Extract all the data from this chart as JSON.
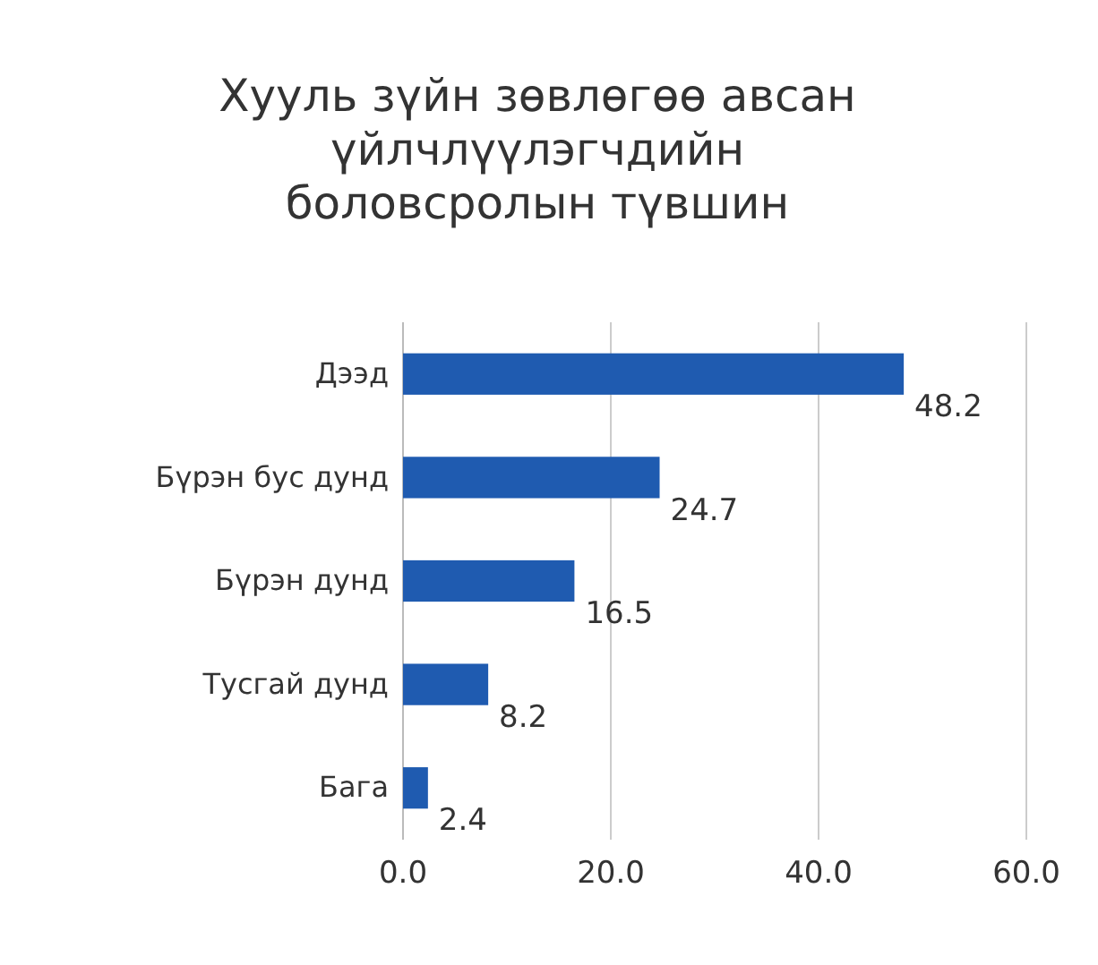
{
  "chart_data": {
    "type": "bar",
    "orientation": "horizontal",
    "title": "Хууль зүйн зөвлөгөө авсан үйлчлүүлэгчдийн боловсролын түвшин",
    "categories": [
      "Дээд",
      "Бүрэн бус дунд",
      "Бүрэн дунд",
      "Тусгай дунд",
      "Бага"
    ],
    "values": [
      48.2,
      24.7,
      16.5,
      8.2,
      2.4
    ],
    "color": "#1f5bb0",
    "xlim": [
      0,
      60
    ],
    "xticks": [
      {
        "value": 0,
        "label": "0.0"
      },
      {
        "value": 20,
        "label": "20.0"
      },
      {
        "value": 40,
        "label": "40.0"
      },
      {
        "value": 60,
        "label": "60.0"
      }
    ],
    "grid": "x",
    "data_labels": true
  }
}
